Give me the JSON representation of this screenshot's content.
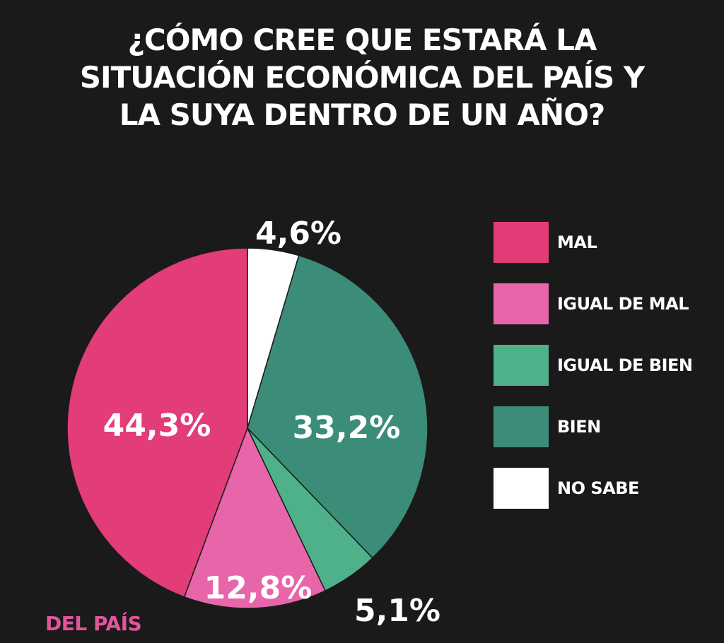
{
  "header": {
    "title_lines": [
      "¿CÓMO CREE QUE ESTARÁ LA",
      "SITUACIÓN ECONÓMICA DEL PAÍS Y",
      "LA SUYA DENTRO DE UN AÑO?"
    ]
  },
  "chart_data": {
    "type": "pie",
    "title": "¿CÓMO CREE QUE ESTARÁ LA SITUACIÓN ECONÓMICA DEL PAÍS Y LA SUYA DENTRO DE UN AÑO?",
    "legend_position": "right",
    "slices": [
      {
        "name": "NO SABE",
        "value": 4.6,
        "label": "4,6%",
        "color": "#ffffff"
      },
      {
        "name": "BIEN",
        "value": 33.2,
        "label": "33,2%",
        "color": "#3b8c79"
      },
      {
        "name": "IGUAL DE BIEN",
        "value": 5.1,
        "label": "5,1%",
        "color": "#4fb18a"
      },
      {
        "name": "IGUAL DE MAL",
        "value": 12.8,
        "label": "12,8%",
        "color": "#e766aa"
      },
      {
        "name": "MAL",
        "value": 44.3,
        "label": "44,3%",
        "color": "#e23d78"
      }
    ]
  },
  "legend": {
    "items": [
      {
        "label": "MAL",
        "color": "#e23d78"
      },
      {
        "label": "IGUAL DE MAL",
        "color": "#e766aa"
      },
      {
        "label": "IGUAL DE BIEN",
        "color": "#4fb18a"
      },
      {
        "label": "BIEN",
        "color": "#3b8c79"
      },
      {
        "label": "NO SABE",
        "color": "#ffffff"
      }
    ]
  },
  "footer": {
    "source": "DEL PAÍS"
  }
}
